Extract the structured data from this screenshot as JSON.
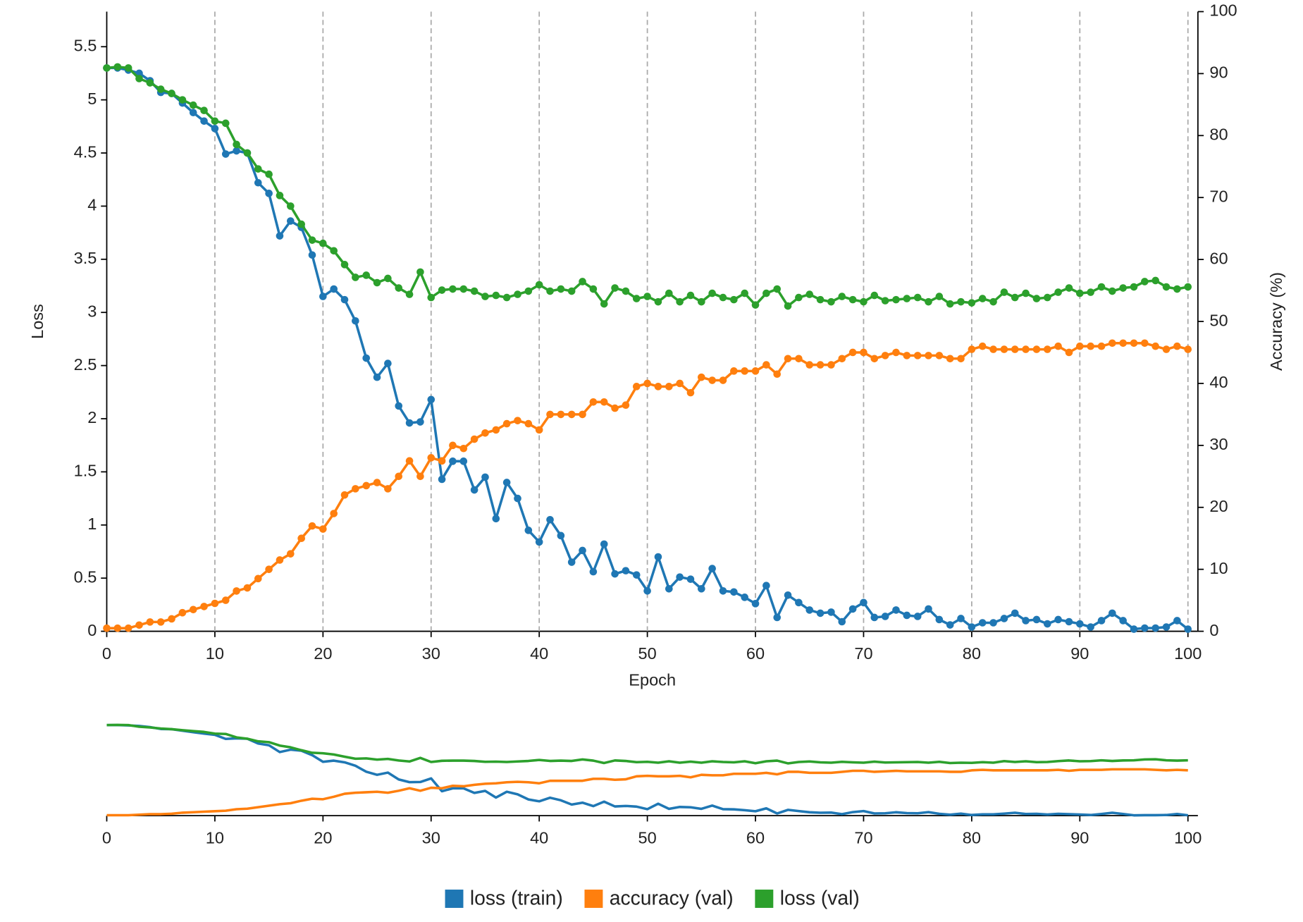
{
  "chart_data": {
    "type": "line",
    "xlabel": "Epoch",
    "ylabel": "Loss",
    "y2label": "Accuracy (%)",
    "x": [
      0,
      1,
      2,
      3,
      4,
      5,
      6,
      7,
      8,
      9,
      10,
      11,
      12,
      13,
      14,
      15,
      16,
      17,
      18,
      19,
      20,
      21,
      22,
      23,
      24,
      25,
      26,
      27,
      28,
      29,
      30,
      31,
      32,
      33,
      34,
      35,
      36,
      37,
      38,
      39,
      40,
      41,
      42,
      43,
      44,
      45,
      46,
      47,
      48,
      49,
      50,
      51,
      52,
      53,
      54,
      55,
      56,
      57,
      58,
      59,
      60,
      61,
      62,
      63,
      64,
      65,
      66,
      67,
      68,
      69,
      70,
      71,
      72,
      73,
      74,
      75,
      76,
      77,
      78,
      79,
      80,
      81,
      82,
      83,
      84,
      85,
      86,
      87,
      88,
      89,
      90,
      91,
      92,
      93,
      94,
      95,
      96,
      97,
      98,
      99,
      100
    ],
    "series": [
      {
        "name": "loss (train)",
        "color": "#1f77b4",
        "values": [
          5.3,
          5.3,
          5.28,
          5.25,
          5.18,
          5.07,
          5.06,
          4.97,
          4.88,
          4.8,
          4.73,
          4.49,
          4.52,
          4.5,
          4.22,
          4.12,
          3.72,
          3.86,
          3.8,
          3.54,
          3.15,
          3.22,
          3.12,
          2.92,
          2.57,
          2.39,
          2.52,
          2.12,
          1.96,
          1.97,
          2.18,
          1.43,
          1.6,
          1.6,
          1.33,
          1.45,
          1.06,
          1.4,
          1.25,
          0.95,
          0.84,
          1.05,
          0.9,
          0.65,
          0.76,
          0.56,
          0.82,
          0.54,
          0.57,
          0.53,
          0.38,
          0.7,
          0.4,
          0.51,
          0.49,
          0.4,
          0.59,
          0.38,
          0.37,
          0.32,
          0.26,
          0.43,
          0.13,
          0.34,
          0.27,
          0.2,
          0.17,
          0.18,
          0.09,
          0.21,
          0.27,
          0.13,
          0.14,
          0.2,
          0.15,
          0.14,
          0.21,
          0.11,
          0.06,
          0.12,
          0.04,
          0.08,
          0.08,
          0.12,
          0.17,
          0.1,
          0.11,
          0.07,
          0.11,
          0.09,
          0.07,
          0.04,
          0.1,
          0.17,
          0.1,
          0.02,
          0.03,
          0.03,
          0.04,
          0.1,
          0.02
        ]
      },
      {
        "name": "accuracy (val)",
        "color": "#ff7f0e",
        "axis": "y2",
        "values": [
          0.5,
          0.5,
          0.5,
          1,
          1.5,
          1.5,
          2,
          3,
          3.5,
          4,
          4.5,
          5,
          6.5,
          7,
          8.5,
          10,
          11.5,
          12.5,
          15,
          17,
          16.5,
          19,
          22,
          23,
          23.5,
          24,
          23,
          25,
          27.5,
          25,
          28,
          27.5,
          30,
          29.5,
          31,
          32,
          32.5,
          33.5,
          34,
          33.5,
          32.5,
          35,
          35,
          35,
          35,
          37,
          37,
          36,
          36.5,
          39.5,
          40,
          39.5,
          39.5,
          40,
          38.5,
          41,
          40.5,
          40.5,
          42,
          42,
          42,
          43,
          41.5,
          44,
          44,
          43,
          43,
          43,
          44,
          45,
          45,
          44,
          44.5,
          45,
          44.5,
          44.5,
          44.5,
          44.5,
          44,
          44,
          45.5,
          46,
          45.5,
          45.5,
          45.5,
          45.5,
          45.5,
          45.5,
          46,
          45,
          46,
          46,
          46,
          46.5,
          46.5,
          46.5,
          46.5,
          46,
          45.5,
          46,
          45.5
        ]
      },
      {
        "name": "loss (val)",
        "color": "#2ca02c",
        "values": [
          5.3,
          5.31,
          5.3,
          5.2,
          5.16,
          5.1,
          5.06,
          5.0,
          4.95,
          4.9,
          4.8,
          4.78,
          4.58,
          4.5,
          4.35,
          4.3,
          4.1,
          4.0,
          3.83,
          3.68,
          3.65,
          3.58,
          3.45,
          3.33,
          3.35,
          3.28,
          3.32,
          3.23,
          3.17,
          3.38,
          3.14,
          3.21,
          3.22,
          3.22,
          3.2,
          3.15,
          3.16,
          3.14,
          3.17,
          3.2,
          3.26,
          3.2,
          3.22,
          3.2,
          3.29,
          3.22,
          3.08,
          3.23,
          3.2,
          3.13,
          3.15,
          3.1,
          3.18,
          3.1,
          3.16,
          3.1,
          3.18,
          3.14,
          3.12,
          3.18,
          3.07,
          3.18,
          3.22,
          3.06,
          3.14,
          3.17,
          3.12,
          3.1,
          3.15,
          3.12,
          3.1,
          3.16,
          3.11,
          3.12,
          3.13,
          3.14,
          3.1,
          3.15,
          3.08,
          3.1,
          3.09,
          3.13,
          3.1,
          3.19,
          3.14,
          3.18,
          3.13,
          3.14,
          3.19,
          3.23,
          3.18,
          3.19,
          3.24,
          3.2,
          3.23,
          3.24,
          3.29,
          3.3,
          3.24,
          3.22,
          3.24
        ]
      }
    ],
    "xlim": [
      0,
      100
    ],
    "xticks": [
      0,
      10,
      20,
      30,
      40,
      50,
      60,
      70,
      80,
      90,
      100
    ],
    "ylim": [
      0,
      5.83
    ],
    "yticks": [
      0,
      0.5,
      1,
      1.5,
      2,
      2.5,
      3,
      3.5,
      4,
      4.5,
      5,
      5.5
    ],
    "y2lim": [
      0,
      100
    ],
    "y2ticks": [
      0,
      10,
      20,
      30,
      40,
      50,
      60,
      70,
      80,
      90,
      100
    ],
    "grid": "x",
    "markers": true,
    "overview": true,
    "legend": "bottom"
  }
}
